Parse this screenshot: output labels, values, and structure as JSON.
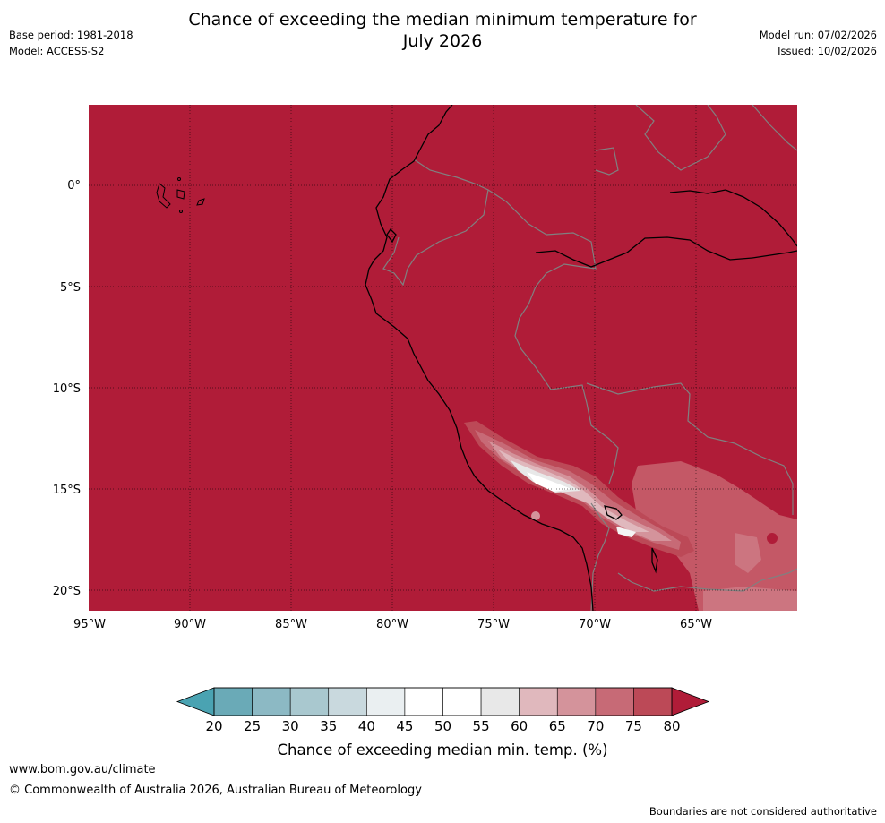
{
  "header": {
    "title_line1": "Chance of exceeding the median minimum temperature for",
    "title_line2": "July 2026",
    "base_period": "Base period: 1981-2018",
    "model": "Model: ACCESS-S2",
    "model_run": "Model run: 07/02/2026",
    "issued": "Issued: 10/02/2026"
  },
  "map": {
    "lon_labels": [
      "95°W",
      "90°W",
      "85°W",
      "80°W",
      "75°W",
      "70°W",
      "65°W"
    ],
    "lat_labels": [
      "0°",
      "5°S",
      "10°S",
      "15°S",
      "20°S"
    ],
    "background_color": "#b01c38",
    "coastline_color": "#000000",
    "border_color": "#808080"
  },
  "colorbar": {
    "label": "Chance of exceeding median min. temp. (%)",
    "ticks": [
      "20",
      "25",
      "30",
      "35",
      "40",
      "45",
      "50",
      "55",
      "60",
      "65",
      "70",
      "75",
      "80"
    ],
    "colors": [
      "#6aaab7",
      "#8cb9c4",
      "#a9c8cf",
      "#c9d9de",
      "#eaeff1",
      "#ffffff",
      "#ffffff",
      "#e8e8e8",
      "#e0b8bd",
      "#d4939b",
      "#c76a76",
      "#bc4957"
    ],
    "under_color": "#4aa3b2",
    "over_color": "#b01c38"
  },
  "footer": {
    "url": "www.bom.gov.au/climate",
    "copyright": "© Commonwealth of Australia 2026, Australian Bureau of Meteorology",
    "note": "Boundaries are not considered authoritative"
  }
}
